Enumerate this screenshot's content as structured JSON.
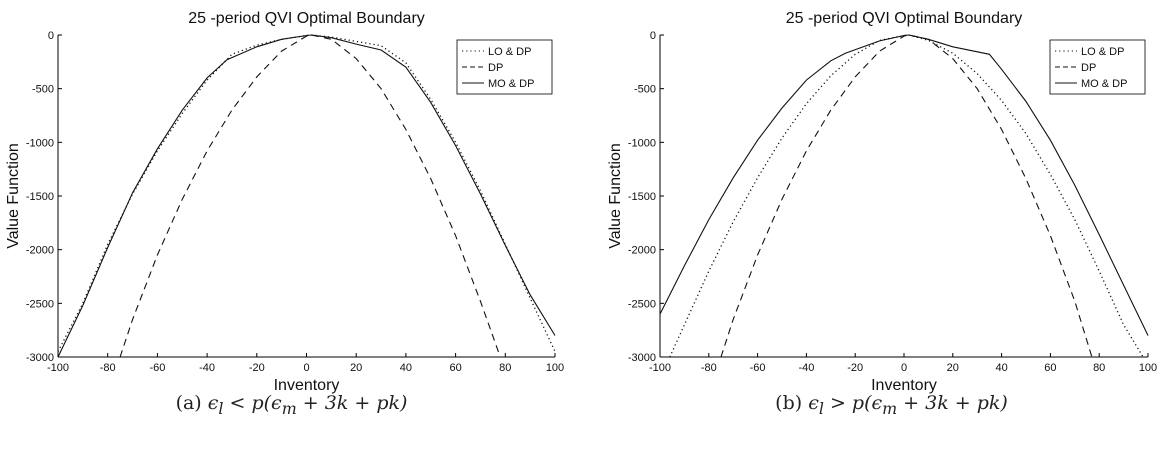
{
  "chart_data": [
    {
      "type": "line",
      "title": "25 -period QVI Optimal Boundary",
      "xlabel": "Inventory",
      "ylabel": "Value Function",
      "xlim": [
        -100,
        100
      ],
      "ylim": [
        -3000,
        0
      ],
      "xticks": [
        "-100",
        "-80",
        "-60",
        "-40",
        "-20",
        "0",
        "20",
        "40",
        "60",
        "80",
        "100"
      ],
      "yticks": [
        "0",
        "-500",
        "-1000",
        "-1500",
        "-2000",
        "-2500",
        "-3000"
      ],
      "legend_position": "top-right",
      "caption": "(a) ϵ_l < p(ϵ_m + 3k + pk)",
      "caption_parts": {
        "label": "(a)",
        "math": "ϵ",
        "sub": "l",
        "rest": " < p(ϵ",
        "sub2": "m",
        "tail": " + 3k + pk)"
      },
      "series": [
        {
          "name": "LO & DP",
          "style": "dotted",
          "x": [
            -100,
            -90,
            -80,
            -70,
            -60,
            -50,
            -40,
            -30,
            -20,
            -10,
            0,
            2,
            10,
            20,
            30,
            40,
            50,
            60,
            70,
            80,
            90,
            100
          ],
          "y": [
            -2950,
            -2500,
            -1950,
            -1480,
            -1080,
            -730,
            -420,
            -180,
            -95,
            -40,
            -5,
            0,
            -20,
            -60,
            -100,
            -260,
            -600,
            -1000,
            -1450,
            -1950,
            -2450,
            -2950
          ]
        },
        {
          "name": "DP",
          "style": "dashed",
          "x": [
            -75,
            -70,
            -60,
            -50,
            -40,
            -30,
            -20,
            -10,
            0,
            2,
            10,
            20,
            30,
            40,
            50,
            60,
            70,
            78
          ],
          "y": [
            -3000,
            -2650,
            -2050,
            -1530,
            -1080,
            -700,
            -390,
            -150,
            -10,
            0,
            -40,
            -220,
            -500,
            -880,
            -1340,
            -1870,
            -2480,
            -3000
          ]
        },
        {
          "name": "MO & DP",
          "style": "solid",
          "x": [
            -100,
            -90,
            -80,
            -70,
            -60,
            -50,
            -40,
            -32,
            -20,
            -10,
            0,
            2,
            10,
            20,
            30,
            40,
            50,
            60,
            70,
            80,
            90,
            100
          ],
          "y": [
            -3000,
            -2520,
            -1980,
            -1470,
            -1060,
            -700,
            -400,
            -230,
            -110,
            -40,
            -5,
            0,
            -25,
            -85,
            -140,
            -300,
            -630,
            -1030,
            -1480,
            -1960,
            -2420,
            -2800
          ]
        }
      ]
    },
    {
      "type": "line",
      "title": "25 -period QVI Optimal Boundary",
      "xlabel": "Inventory",
      "ylabel": "Value Function",
      "xlim": [
        -100,
        100
      ],
      "ylim": [
        -3000,
        0
      ],
      "xticks": [
        "-100",
        "-80",
        "-60",
        "-40",
        "-20",
        "0",
        "20",
        "40",
        "60",
        "80",
        "100"
      ],
      "yticks": [
        "0",
        "-500",
        "-1000",
        "-1500",
        "-2000",
        "-2500",
        "-3000"
      ],
      "legend_position": "top-right",
      "caption": "(b) ϵ_l > p(ϵ_m + 3k + pk)",
      "caption_parts": {
        "label": "(b)",
        "math": "ϵ",
        "sub": "l",
        "rest": " > p(ϵ",
        "sub2": "m",
        "tail": " + 3k + pk)"
      },
      "series": [
        {
          "name": "LO & DP",
          "style": "dotted",
          "x": [
            -96,
            -90,
            -80,
            -70,
            -60,
            -50,
            -40,
            -30,
            -20,
            -10,
            0,
            2,
            10,
            20,
            30,
            40,
            50,
            60,
            70,
            80,
            90,
            98
          ],
          "y": [
            -3000,
            -2700,
            -2200,
            -1740,
            -1330,
            -960,
            -640,
            -380,
            -180,
            -50,
            -5,
            0,
            -50,
            -170,
            -360,
            -610,
            -920,
            -1300,
            -1720,
            -2200,
            -2700,
            -3000
          ]
        },
        {
          "name": "DP",
          "style": "dashed",
          "x": [
            -75,
            -70,
            -60,
            -50,
            -40,
            -30,
            -20,
            -10,
            0,
            2,
            10,
            20,
            30,
            40,
            50,
            60,
            70,
            77
          ],
          "y": [
            -3000,
            -2650,
            -2050,
            -1530,
            -1080,
            -700,
            -390,
            -150,
            -10,
            0,
            -40,
            -220,
            -500,
            -880,
            -1340,
            -1870,
            -2480,
            -3000
          ]
        },
        {
          "name": "MO & DP",
          "style": "solid",
          "x": [
            -100,
            -90,
            -80,
            -70,
            -60,
            -50,
            -40,
            -30,
            -24,
            -10,
            0,
            2,
            10,
            20,
            35,
            40,
            50,
            60,
            70,
            80,
            90,
            100
          ],
          "y": [
            -2600,
            -2150,
            -1720,
            -1330,
            -980,
            -680,
            -420,
            -240,
            -170,
            -55,
            -5,
            0,
            -40,
            -110,
            -180,
            -320,
            -620,
            -980,
            -1400,
            -1860,
            -2330,
            -2800
          ]
        }
      ]
    }
  ]
}
